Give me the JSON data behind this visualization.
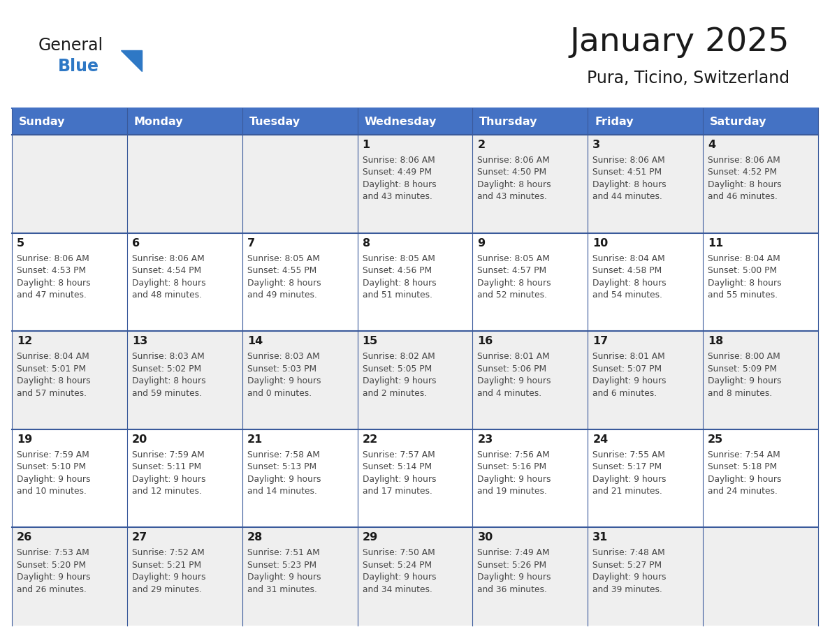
{
  "title": "January 2025",
  "subtitle": "Pura, Ticino, Switzerland",
  "days_of_week": [
    "Sunday",
    "Monday",
    "Tuesday",
    "Wednesday",
    "Thursday",
    "Friday",
    "Saturday"
  ],
  "header_bg": "#4472C4",
  "header_text": "#FFFFFF",
  "cell_bg_odd": "#EFEFEF",
  "cell_bg_even": "#FFFFFF",
  "row_divider_color": "#3A5A9B",
  "title_color": "#1a1a1a",
  "cell_text_color": "#444444",
  "day_num_color": "#1a1a1a",
  "logo_color1": "#1a1a1a",
  "logo_color2": "#2E78C5",
  "logo_triangle_color": "#2E78C5",
  "logo_text1": "General",
  "logo_text2": "Blue",
  "calendar": [
    [
      {
        "day": "",
        "sunrise": "",
        "sunset": "",
        "daylight": ""
      },
      {
        "day": "",
        "sunrise": "",
        "sunset": "",
        "daylight": ""
      },
      {
        "day": "",
        "sunrise": "",
        "sunset": "",
        "daylight": ""
      },
      {
        "day": "1",
        "sunrise": "8:06 AM",
        "sunset": "4:49 PM",
        "daylight": "8 hours\nand 43 minutes."
      },
      {
        "day": "2",
        "sunrise": "8:06 AM",
        "sunset": "4:50 PM",
        "daylight": "8 hours\nand 43 minutes."
      },
      {
        "day": "3",
        "sunrise": "8:06 AM",
        "sunset": "4:51 PM",
        "daylight": "8 hours\nand 44 minutes."
      },
      {
        "day": "4",
        "sunrise": "8:06 AM",
        "sunset": "4:52 PM",
        "daylight": "8 hours\nand 46 minutes."
      }
    ],
    [
      {
        "day": "5",
        "sunrise": "8:06 AM",
        "sunset": "4:53 PM",
        "daylight": "8 hours\nand 47 minutes."
      },
      {
        "day": "6",
        "sunrise": "8:06 AM",
        "sunset": "4:54 PM",
        "daylight": "8 hours\nand 48 minutes."
      },
      {
        "day": "7",
        "sunrise": "8:05 AM",
        "sunset": "4:55 PM",
        "daylight": "8 hours\nand 49 minutes."
      },
      {
        "day": "8",
        "sunrise": "8:05 AM",
        "sunset": "4:56 PM",
        "daylight": "8 hours\nand 51 minutes."
      },
      {
        "day": "9",
        "sunrise": "8:05 AM",
        "sunset": "4:57 PM",
        "daylight": "8 hours\nand 52 minutes."
      },
      {
        "day": "10",
        "sunrise": "8:04 AM",
        "sunset": "4:58 PM",
        "daylight": "8 hours\nand 54 minutes."
      },
      {
        "day": "11",
        "sunrise": "8:04 AM",
        "sunset": "5:00 PM",
        "daylight": "8 hours\nand 55 minutes."
      }
    ],
    [
      {
        "day": "12",
        "sunrise": "8:04 AM",
        "sunset": "5:01 PM",
        "daylight": "8 hours\nand 57 minutes."
      },
      {
        "day": "13",
        "sunrise": "8:03 AM",
        "sunset": "5:02 PM",
        "daylight": "8 hours\nand 59 minutes."
      },
      {
        "day": "14",
        "sunrise": "8:03 AM",
        "sunset": "5:03 PM",
        "daylight": "9 hours\nand 0 minutes."
      },
      {
        "day": "15",
        "sunrise": "8:02 AM",
        "sunset": "5:05 PM",
        "daylight": "9 hours\nand 2 minutes."
      },
      {
        "day": "16",
        "sunrise": "8:01 AM",
        "sunset": "5:06 PM",
        "daylight": "9 hours\nand 4 minutes."
      },
      {
        "day": "17",
        "sunrise": "8:01 AM",
        "sunset": "5:07 PM",
        "daylight": "9 hours\nand 6 minutes."
      },
      {
        "day": "18",
        "sunrise": "8:00 AM",
        "sunset": "5:09 PM",
        "daylight": "9 hours\nand 8 minutes."
      }
    ],
    [
      {
        "day": "19",
        "sunrise": "7:59 AM",
        "sunset": "5:10 PM",
        "daylight": "9 hours\nand 10 minutes."
      },
      {
        "day": "20",
        "sunrise": "7:59 AM",
        "sunset": "5:11 PM",
        "daylight": "9 hours\nand 12 minutes."
      },
      {
        "day": "21",
        "sunrise": "7:58 AM",
        "sunset": "5:13 PM",
        "daylight": "9 hours\nand 14 minutes."
      },
      {
        "day": "22",
        "sunrise": "7:57 AM",
        "sunset": "5:14 PM",
        "daylight": "9 hours\nand 17 minutes."
      },
      {
        "day": "23",
        "sunrise": "7:56 AM",
        "sunset": "5:16 PM",
        "daylight": "9 hours\nand 19 minutes."
      },
      {
        "day": "24",
        "sunrise": "7:55 AM",
        "sunset": "5:17 PM",
        "daylight": "9 hours\nand 21 minutes."
      },
      {
        "day": "25",
        "sunrise": "7:54 AM",
        "sunset": "5:18 PM",
        "daylight": "9 hours\nand 24 minutes."
      }
    ],
    [
      {
        "day": "26",
        "sunrise": "7:53 AM",
        "sunset": "5:20 PM",
        "daylight": "9 hours\nand 26 minutes."
      },
      {
        "day": "27",
        "sunrise": "7:52 AM",
        "sunset": "5:21 PM",
        "daylight": "9 hours\nand 29 minutes."
      },
      {
        "day": "28",
        "sunrise": "7:51 AM",
        "sunset": "5:23 PM",
        "daylight": "9 hours\nand 31 minutes."
      },
      {
        "day": "29",
        "sunrise": "7:50 AM",
        "sunset": "5:24 PM",
        "daylight": "9 hours\nand 34 minutes."
      },
      {
        "day": "30",
        "sunrise": "7:49 AM",
        "sunset": "5:26 PM",
        "daylight": "9 hours\nand 36 minutes."
      },
      {
        "day": "31",
        "sunrise": "7:48 AM",
        "sunset": "5:27 PM",
        "daylight": "9 hours\nand 39 minutes."
      },
      {
        "day": "",
        "sunrise": "",
        "sunset": "",
        "daylight": ""
      }
    ]
  ]
}
